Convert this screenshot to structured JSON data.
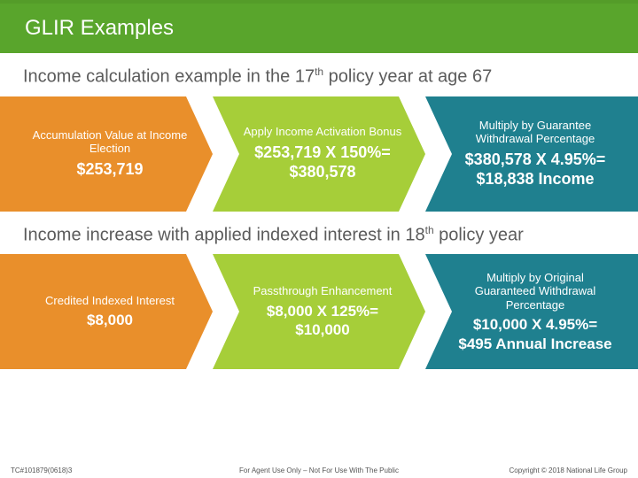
{
  "colors": {
    "titleBand": "#59a52c",
    "subtitleText": "#5b5b5b",
    "chevOrange": "#e98f2b",
    "chevLime": "#a6ce39",
    "chevTeal": "#1f808f",
    "white": "#ffffff"
  },
  "title": "GLIR Examples",
  "section1": {
    "heading_html": "Income calculation example in the 17<sup>th</sup> policy year at age 67",
    "steps": [
      {
        "label": "Accumulation Value at Income Election",
        "value": "$253,719"
      },
      {
        "label": "Apply Income Activation Bonus",
        "value": "$253,719 X 150%= $380,578"
      },
      {
        "label": "Multiply by Guarantee Withdrawal Percentage",
        "value": "$380,578 X 4.95%= $18,838 Income"
      }
    ]
  },
  "section2": {
    "heading_html": "Income increase with applied indexed interest in 18<sup>th</sup> policy year",
    "steps": [
      {
        "label": "Credited Indexed Interest",
        "value": "$8,000"
      },
      {
        "label": "Passthrough Enhancement",
        "value": "$8,000 X 125%= $10,000"
      },
      {
        "label": "Multiply by Original Guaranteed Withdrawal Percentage",
        "value": "$10,000 X 4.95%= $495 Annual Increase"
      }
    ]
  },
  "footer": {
    "left": "TC#101879(0618)3",
    "center": "For Agent Use Only – Not For Use With The Public",
    "right": "Copyright © 2018 National Life Group"
  }
}
